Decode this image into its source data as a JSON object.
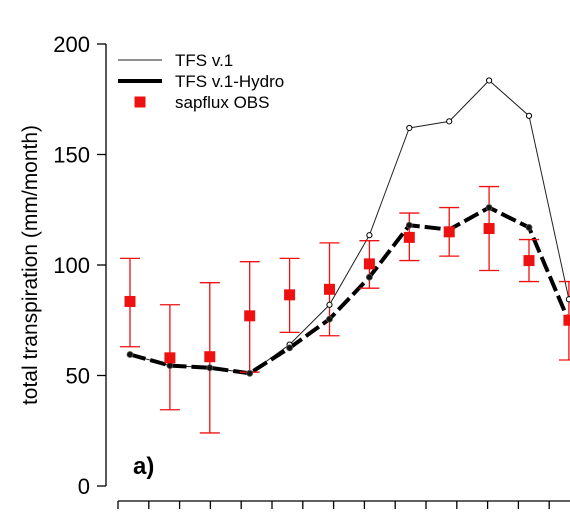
{
  "panel_label": "a)",
  "chart_data": {
    "type": "line",
    "ylabel": "total transpiration (mm/month)",
    "xlabel": "",
    "ylim": [
      0,
      200
    ],
    "yticks": [
      0,
      50,
      100,
      150,
      200
    ],
    "x": [
      1,
      2,
      3,
      4,
      5,
      6,
      7,
      8,
      9,
      10,
      11,
      12
    ],
    "xlim": [
      0.3,
      12.7
    ],
    "series": [
      {
        "name": "TFS v.1",
        "style": "thin-line-open-circles",
        "color": "#000000",
        "x": [
          1,
          2,
          3,
          4,
          5,
          6,
          7,
          8,
          9,
          10,
          11,
          12
        ],
        "values": [
          59.5,
          54.5,
          53.5,
          51,
          64,
          82,
          113.5,
          162,
          165,
          183.5,
          167.5,
          84.5
        ]
      },
      {
        "name": "TFS v.1-Hydro",
        "style": "thick-line-filled-dots",
        "color": "#000000",
        "x": [
          1,
          2,
          3,
          4,
          5,
          6,
          7,
          8,
          9,
          10,
          11,
          12
        ],
        "values": [
          59.5,
          54.5,
          53.5,
          51,
          62.5,
          75.5,
          94.5,
          118,
          116,
          126,
          117,
          74.5
        ]
      },
      {
        "name": "sapflux OBS",
        "style": "square-markers-error-bars",
        "color": "#ee1111",
        "x": [
          1,
          2,
          3,
          4,
          5,
          6,
          7,
          8,
          9,
          10,
          11,
          12
        ],
        "values": [
          83.5,
          58,
          58.5,
          77,
          86.5,
          89,
          100.5,
          112.5,
          115,
          116.5,
          102,
          75
        ],
        "err_low": [
          63,
          34.5,
          24,
          51.5,
          69.5,
          68,
          89.5,
          102,
          104,
          97.5,
          92.5,
          57
        ],
        "err_high": [
          103,
          82,
          92,
          101.5,
          103,
          110,
          111,
          123.5,
          126,
          135.5,
          111.5,
          92.5
        ]
      }
    ],
    "legend_position": "top-left",
    "grid": false
  }
}
